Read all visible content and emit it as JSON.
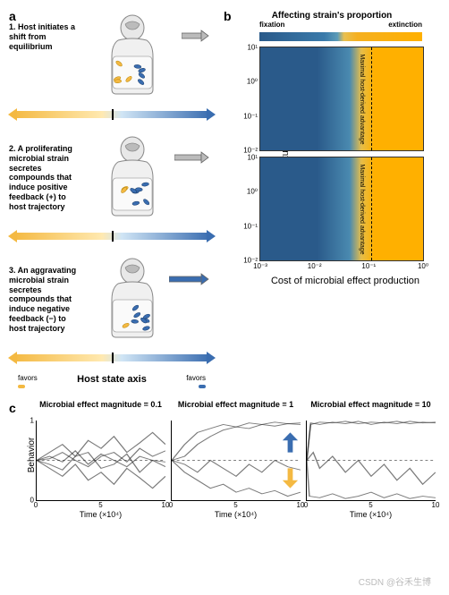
{
  "panels": {
    "a": {
      "label": "a",
      "stages": [
        {
          "text": "1. Host initiates a shift from equilibrium",
          "arrow_color": "#bbbbbb",
          "arrow_width": 22,
          "microbe_mix": [
            0.5,
            0.5
          ]
        },
        {
          "text": "2. A proliferating microbial strain secretes compounds that induce positive feedback (+) to host trajectory",
          "arrow_color": "#bbbbbb",
          "arrow_width": 30,
          "microbe_mix": [
            0.2,
            0.8
          ]
        },
        {
          "text": "3. An aggravating microbial strain secretes compounds that induce negative feedback (−) to host trajectory",
          "arrow_color": "#3a6db0",
          "arrow_width": 36,
          "microbe_mix": [
            0.1,
            0.9
          ]
        }
      ],
      "axis_label": "Host state axis",
      "favors_left": "favors",
      "favors_right": "favors",
      "color_yellow": "#f4b942",
      "color_blue": "#3a6db0"
    },
    "b": {
      "label": "b",
      "title": "Affecting strain's proportion",
      "cb_left": "fixation",
      "cb_right": "extinction",
      "gradient_low": "#2a5a8a",
      "gradient_high": "#ffb000",
      "ylabel": "Microbial effect magnitude",
      "xlabel": "Cost of microbial effect production",
      "dashed_label": "Maximal host-derived advantage",
      "yticks": [
        "10¹",
        "10⁰",
        "10⁻¹",
        "10⁻²"
      ],
      "xticks": [
        "10⁻³",
        "10⁻²",
        "10⁻¹",
        "10⁰"
      ],
      "heatmaps": [
        {
          "boundary_pct": 62
        },
        {
          "boundary_pct": 60
        }
      ]
    },
    "c": {
      "label": "c",
      "ylabel": "Behavior",
      "xlabel": "Time (×10⁴)",
      "yticks": [
        "0",
        "1"
      ],
      "xticks": [
        "0",
        "5",
        "10"
      ],
      "subplots": [
        {
          "title": "Microbial effect magnitude = 0.1",
          "dashed_y": 0.5,
          "arrows": false,
          "traces": [
            [
              [
                0,
                0.5
              ],
              [
                1,
                0.55
              ],
              [
                2,
                0.48
              ],
              [
                3,
                0.62
              ],
              [
                4,
                0.45
              ],
              [
                5,
                0.58
              ],
              [
                6,
                0.5
              ],
              [
                7,
                0.42
              ],
              [
                8,
                0.55
              ],
              [
                9,
                0.5
              ],
              [
                10,
                0.48
              ]
            ],
            [
              [
                0,
                0.5
              ],
              [
                1,
                0.6
              ],
              [
                2,
                0.7
              ],
              [
                3,
                0.55
              ],
              [
                4,
                0.75
              ],
              [
                5,
                0.65
              ],
              [
                6,
                0.8
              ],
              [
                7,
                0.6
              ],
              [
                8,
                0.72
              ],
              [
                9,
                0.85
              ],
              [
                10,
                0.7
              ]
            ],
            [
              [
                0,
                0.5
              ],
              [
                1,
                0.4
              ],
              [
                2,
                0.3
              ],
              [
                3,
                0.45
              ],
              [
                4,
                0.25
              ],
              [
                5,
                0.35
              ],
              [
                6,
                0.2
              ],
              [
                7,
                0.4
              ],
              [
                8,
                0.28
              ],
              [
                9,
                0.15
              ],
              [
                10,
                0.3
              ]
            ],
            [
              [
                0,
                0.5
              ],
              [
                1,
                0.52
              ],
              [
                2,
                0.6
              ],
              [
                3,
                0.5
              ],
              [
                4,
                0.42
              ],
              [
                5,
                0.55
              ],
              [
                6,
                0.6
              ],
              [
                7,
                0.48
              ],
              [
                8,
                0.65
              ],
              [
                9,
                0.55
              ],
              [
                10,
                0.62
              ]
            ],
            [
              [
                0,
                0.5
              ],
              [
                1,
                0.45
              ],
              [
                2,
                0.38
              ],
              [
                3,
                0.55
              ],
              [
                4,
                0.6
              ],
              [
                5,
                0.4
              ],
              [
                6,
                0.45
              ],
              [
                7,
                0.58
              ],
              [
                8,
                0.35
              ],
              [
                9,
                0.5
              ],
              [
                10,
                0.42
              ]
            ]
          ]
        },
        {
          "title": "Microbial effect magnitude = 1",
          "dashed_y": 0.5,
          "arrows": true,
          "arrow_up_color": "#3a6db0",
          "arrow_down_color": "#f4b942",
          "traces": [
            [
              [
                0,
                0.5
              ],
              [
                1,
                0.7
              ],
              [
                2,
                0.85
              ],
              [
                3,
                0.9
              ],
              [
                4,
                0.95
              ],
              [
                5,
                0.92
              ],
              [
                6,
                0.97
              ],
              [
                7,
                0.95
              ],
              [
                8,
                0.98
              ],
              [
                9,
                0.96
              ],
              [
                10,
                0.97
              ]
            ],
            [
              [
                0,
                0.5
              ],
              [
                1,
                0.55
              ],
              [
                2,
                0.7
              ],
              [
                3,
                0.8
              ],
              [
                4,
                0.88
              ],
              [
                5,
                0.92
              ],
              [
                6,
                0.9
              ],
              [
                7,
                0.95
              ],
              [
                8,
                0.93
              ],
              [
                9,
                0.96
              ],
              [
                10,
                0.95
              ]
            ],
            [
              [
                0,
                0.5
              ],
              [
                1,
                0.45
              ],
              [
                2,
                0.35
              ],
              [
                3,
                0.5
              ],
              [
                4,
                0.4
              ],
              [
                5,
                0.3
              ],
              [
                6,
                0.45
              ],
              [
                7,
                0.35
              ],
              [
                8,
                0.5
              ],
              [
                9,
                0.42
              ],
              [
                10,
                0.38
              ]
            ],
            [
              [
                0,
                0.5
              ],
              [
                1,
                0.35
              ],
              [
                2,
                0.25
              ],
              [
                3,
                0.15
              ],
              [
                4,
                0.2
              ],
              [
                5,
                0.1
              ],
              [
                6,
                0.15
              ],
              [
                7,
                0.08
              ],
              [
                8,
                0.12
              ],
              [
                9,
                0.05
              ],
              [
                10,
                0.1
              ]
            ]
          ]
        },
        {
          "title": "Microbial effect magnitude = 10",
          "dashed_y": 0.5,
          "arrows": false,
          "traces": [
            [
              [
                0,
                0.5
              ],
              [
                0.3,
                0.95
              ],
              [
                1,
                0.98
              ],
              [
                2,
                0.97
              ],
              [
                3,
                0.99
              ],
              [
                4,
                0.96
              ],
              [
                5,
                0.98
              ],
              [
                6,
                0.97
              ],
              [
                7,
                0.99
              ],
              [
                8,
                0.96
              ],
              [
                9,
                0.98
              ],
              [
                10,
                0.97
              ]
            ],
            [
              [
                0,
                0.5
              ],
              [
                0.3,
                0.97
              ],
              [
                1,
                0.95
              ],
              [
                2,
                0.98
              ],
              [
                3,
                0.96
              ],
              [
                4,
                0.99
              ],
              [
                5,
                0.95
              ],
              [
                6,
                0.98
              ],
              [
                7,
                0.96
              ],
              [
                8,
                0.99
              ],
              [
                9,
                0.97
              ],
              [
                10,
                0.98
              ]
            ],
            [
              [
                0,
                0.5
              ],
              [
                0.5,
                0.6
              ],
              [
                1,
                0.4
              ],
              [
                2,
                0.55
              ],
              [
                3,
                0.35
              ],
              [
                4,
                0.5
              ],
              [
                5,
                0.3
              ],
              [
                6,
                0.45
              ],
              [
                7,
                0.25
              ],
              [
                8,
                0.4
              ],
              [
                9,
                0.2
              ],
              [
                10,
                0.35
              ]
            ],
            [
              [
                0,
                0.5
              ],
              [
                0.2,
                0.05
              ],
              [
                1,
                0.03
              ],
              [
                2,
                0.08
              ],
              [
                3,
                0.02
              ],
              [
                4,
                0.05
              ],
              [
                5,
                0.1
              ],
              [
                6,
                0.03
              ],
              [
                7,
                0.08
              ],
              [
                8,
                0.02
              ],
              [
                9,
                0.05
              ],
              [
                10,
                0.03
              ]
            ]
          ]
        }
      ]
    }
  },
  "watermark": "CSDN @谷禾生博",
  "trace_color": "#222222",
  "trace_alpha": 0.6
}
